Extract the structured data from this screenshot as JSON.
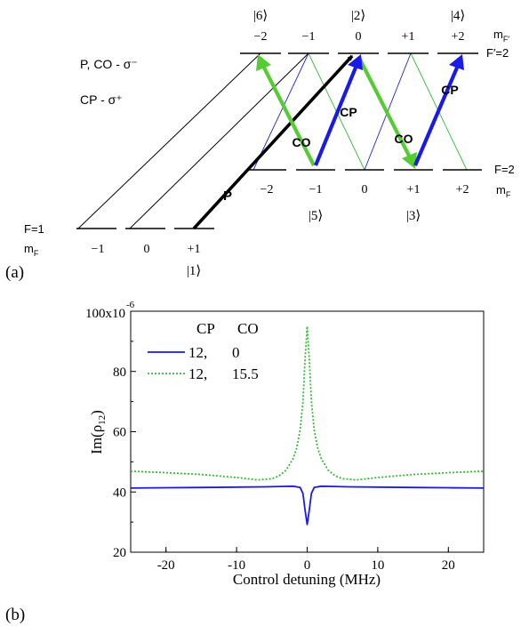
{
  "panel_a": {
    "panel_label": "(a)",
    "polarization": {
      "line1": "P, CO - σ⁻",
      "line2": "CP - σ⁺"
    },
    "upper": {
      "mF_values": [
        "−2",
        "−1",
        "0",
        "+1",
        "+2"
      ],
      "state_labels": {
        "m2": "|6⟩",
        "m0": "|2⟩",
        "p2": "|4⟩"
      },
      "mF_label": "mF′",
      "F_label": "F′=2"
    },
    "middle": {
      "mF_values": [
        "−2",
        "−1",
        "0",
        "+1",
        "+2"
      ],
      "state_labels": {
        "m1": "|5⟩",
        "p1": "|3⟩"
      },
      "F_label": "F=2",
      "mF_label": "mF"
    },
    "lower": {
      "F_label": "F=1",
      "mF_label": "mF",
      "mF_values": [
        "−1",
        "0",
        "+1"
      ],
      "state_label": "|1⟩"
    },
    "arrow_labels": {
      "probe": "P",
      "co_left": "CO",
      "co_right": "CO",
      "cp_left": "CP",
      "cp_right": "CP"
    },
    "colors": {
      "probe": "#000000",
      "co": "#55cc33",
      "cp": "#1a1ae6",
      "thin_green": "#33bb33",
      "thin_blue": "#2222cc"
    }
  },
  "panel_b": {
    "panel_label": "(b)",
    "legend": {
      "header_cp": "CP",
      "header_co": "CO",
      "entries": [
        {
          "cp": "12,",
          "co": "0"
        },
        {
          "cp": "12,",
          "co": "15.5"
        }
      ]
    },
    "colors": {
      "solid": "#1a1ae6",
      "dotted": "#33bb33"
    }
  },
  "chart_data": {
    "type": "line",
    "xlabel": "Control detuning (MHz)",
    "ylabel": "Im(ρ12)",
    "y_exponent": "x10",
    "y_exponent_power": "-6",
    "xlim": [
      -25,
      25
    ],
    "ylim": [
      20,
      100
    ],
    "x_ticks": [
      -20,
      -10,
      0,
      10,
      20
    ],
    "x_tick_labels": [
      "-20",
      "-10",
      "0",
      "10",
      "20"
    ],
    "y_ticks": [
      20,
      40,
      60,
      80,
      100
    ],
    "y_tick_labels": [
      "20",
      "40",
      "60",
      "80",
      "100"
    ],
    "series": [
      {
        "name": "12, 0",
        "style": "solid",
        "x": [
          -25,
          -20,
          -15,
          -10,
          -6,
          -4,
          -2,
          -1,
          -0.6,
          -0.3,
          0,
          0.3,
          0.6,
          1,
          2,
          4,
          6,
          10,
          15,
          20,
          25
        ],
        "y": [
          41.3,
          41.4,
          41.5,
          41.6,
          41.7,
          41.8,
          41.9,
          41.5,
          39.5,
          34,
          29.2,
          34,
          39.5,
          41.5,
          41.9,
          41.8,
          41.7,
          41.6,
          41.5,
          41.4,
          41.3
        ]
      },
      {
        "name": "12, 15.5",
        "style": "dotted",
        "x": [
          -25,
          -20,
          -15,
          -10,
          -7,
          -5,
          -4,
          -3,
          -2,
          -1.5,
          -1,
          -0.6,
          -0.3,
          0,
          0.3,
          0.6,
          1,
          1.5,
          2,
          3,
          4,
          5,
          7,
          10,
          15,
          20,
          25
        ],
        "y": [
          46.9,
          46.4,
          45.8,
          44.8,
          44.0,
          44.4,
          45.3,
          47.2,
          51.0,
          54.5,
          60.5,
          70.0,
          84.0,
          95.0,
          84.0,
          70.0,
          60.5,
          54.5,
          51.0,
          47.2,
          45.3,
          44.4,
          44.0,
          44.8,
          45.8,
          46.4,
          46.9
        ]
      }
    ]
  }
}
